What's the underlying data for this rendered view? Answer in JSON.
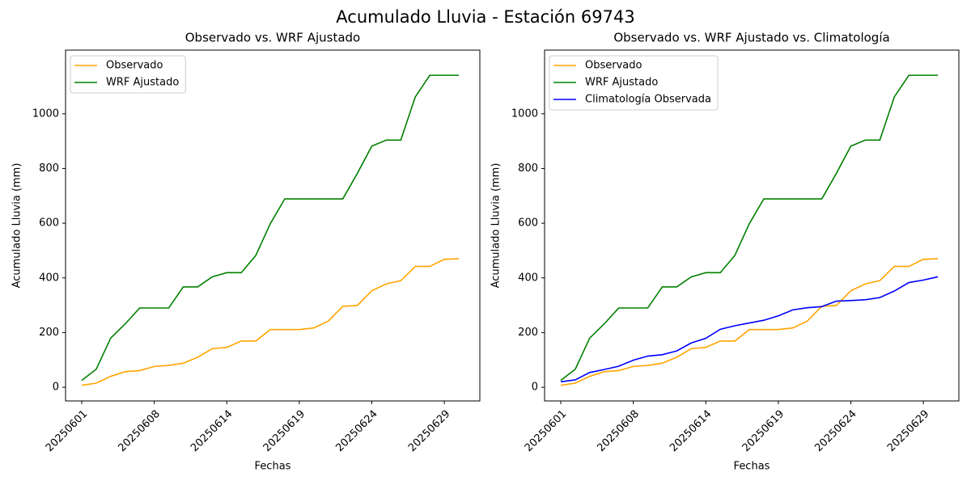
{
  "title": "Acumulado Lluvia - Estación 69743",
  "chart_data": [
    {
      "type": "line",
      "title": "Observado vs. WRF Ajustado",
      "xlabel": "Fechas",
      "ylabel": "Acumulado Lluvia (mm)",
      "categories": [
        "20250601",
        null,
        null,
        null,
        null,
        "20250608",
        null,
        null,
        null,
        null,
        "20250614",
        null,
        null,
        null,
        null,
        "20250619",
        null,
        null,
        null,
        null,
        "20250624",
        null,
        null,
        null,
        null,
        "20250629",
        null
      ],
      "series": [
        {
          "name": "Observado",
          "color": "orange",
          "values": [
            7,
            15,
            40,
            57,
            61,
            76,
            80,
            88,
            110,
            141,
            146,
            169,
            169,
            211,
            211,
            211,
            217,
            242,
            296,
            299,
            353,
            378,
            390,
            442,
            442,
            468,
            470
          ]
        },
        {
          "name": "WRF Ajustado",
          "color": "green",
          "values": [
            25,
            66,
            180,
            232,
            290,
            290,
            290,
            367,
            367,
            404,
            419,
            419,
            482,
            598,
            689,
            689,
            689,
            689,
            689,
            782,
            882,
            904,
            904,
            1062,
            1141,
            1141,
            1141
          ]
        }
      ],
      "ylim": [
        -50,
        1233
      ],
      "yticks": [
        0,
        200,
        400,
        600,
        800,
        1000
      ],
      "legend": "upper left",
      "grid": false
    },
    {
      "type": "line",
      "title": "Observado vs. WRF Ajustado vs. Climatología",
      "xlabel": "Fechas",
      "ylabel": "Acumulado Lluvia (mm)",
      "categories": [
        "20250601",
        null,
        null,
        null,
        null,
        "20250608",
        null,
        null,
        null,
        null,
        "20250614",
        null,
        null,
        null,
        null,
        "20250619",
        null,
        null,
        null,
        null,
        "20250624",
        null,
        null,
        null,
        null,
        "20250629",
        null
      ],
      "series": [
        {
          "name": "Observado",
          "color": "orange",
          "values": [
            7,
            15,
            40,
            57,
            61,
            76,
            80,
            88,
            110,
            141,
            146,
            169,
            169,
            211,
            211,
            211,
            217,
            242,
            296,
            299,
            353,
            378,
            390,
            442,
            442,
            468,
            470
          ]
        },
        {
          "name": "WRF Ajustado",
          "color": "green",
          "values": [
            25,
            66,
            180,
            232,
            290,
            290,
            290,
            367,
            367,
            404,
            419,
            419,
            482,
            598,
            689,
            689,
            689,
            689,
            689,
            782,
            882,
            904,
            904,
            1062,
            1141,
            1141,
            1141
          ]
        },
        {
          "name": "Climatología Observada",
          "color": "blue",
          "values": [
            20,
            27,
            54,
            65,
            77,
            99,
            114,
            119,
            133,
            162,
            179,
            212,
            225,
            235,
            245,
            261,
            283,
            291,
            295,
            315,
            317,
            320,
            328,
            352,
            383,
            392,
            404
          ]
        }
      ],
      "ylim": [
        -50,
        1233
      ],
      "yticks": [
        0,
        200,
        400,
        600,
        800,
        1000
      ],
      "legend": "upper left",
      "grid": false
    }
  ]
}
